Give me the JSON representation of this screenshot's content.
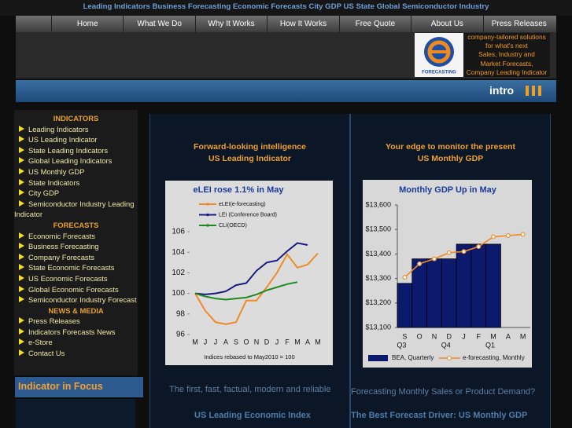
{
  "top_banner": "Leading Indicators Business Forecasting Economic Forecasts City GDP US State Global Semiconductor Industry",
  "nav": [
    "Home",
    "What We Do",
    "Why It Works",
    "How It Works",
    "Free Quote",
    "About Us",
    "Press Releases"
  ],
  "logo_text": "FORECASTING",
  "header_box": [
    "company-tailored solutions",
    "for what's next",
    "Sales, Industry and",
    "Market Forecasts,",
    "Company Leading Indicator"
  ],
  "intro": "intro",
  "sidebar": [
    {
      "heading": "INDICATORS",
      "links": [
        "Leading Indicators",
        "US Leading Indicator",
        "State Leading Indicators",
        "Global Leading Indicators",
        "US Monthly GDP",
        "State Indicators",
        "City GDP",
        "Semiconductor Industry Leading Indicator"
      ]
    },
    {
      "heading": "FORECASTS",
      "links": [
        "Economic Forecasts",
        "Business Forecasting",
        "Company Forecasts",
        "State Economic Forecasts",
        "US Economic Forecasts",
        "Global Economic Forecasts",
        "Semiconductor Industry Forecast"
      ]
    },
    {
      "heading": "NEWS & MEDIA",
      "links": [
        "Press Releases",
        "Indicators Forecasts News",
        "e-Store",
        "Contact Us"
      ]
    }
  ],
  "focus_heading": "Indicator in Focus",
  "panels": [
    {
      "heading": [
        "Forward-looking intelligence",
        "US Leading Indicator"
      ],
      "caption": "The first, fast, factual, modern and reliable",
      "link": "US Leading Economic Index"
    },
    {
      "heading": [
        "Your edge to monitor the present",
        "US Monthly GDP"
      ],
      "caption": "Forecasting Monthly Sales or Product Demand?",
      "link": "The Best Forecast Driver: US Monthly GDP"
    }
  ],
  "chart_data": [
    {
      "type": "line",
      "title": "eLEI rose 1.1% in May",
      "note": "Indices rebased to May2010 = 100",
      "categories": [
        "M",
        "J",
        "J",
        "A",
        "S",
        "O",
        "N",
        "D",
        "J",
        "F",
        "M",
        "A",
        "M"
      ],
      "series": [
        {
          "name": "eLEI(e-forecasting)",
          "color": "#f08a24",
          "values": [
            100,
            98.3,
            97.2,
            97.0,
            97.2,
            99.3,
            99.3,
            100.6,
            102.0,
            103.8,
            102.5,
            102.8,
            103.9
          ]
        },
        {
          "name": "LEI (Conference Board)",
          "color": "#1a1a80",
          "values": [
            100,
            99.9,
            100.0,
            100.2,
            100.8,
            101.0,
            102.2,
            103.0,
            103.2,
            104.1,
            104.9,
            104.7,
            null
          ]
        },
        {
          "name": "CLI(OECD)",
          "color": "#1f8a1f",
          "values": [
            100,
            99.7,
            99.5,
            99.4,
            99.5,
            99.6,
            99.9,
            100.3,
            100.6,
            100.9,
            101.1,
            null,
            null
          ]
        }
      ],
      "ylim": [
        96,
        106
      ],
      "yticks": [
        96,
        98,
        100,
        102,
        104,
        106
      ],
      "grid": false
    },
    {
      "type": "combo",
      "title": "Monthly GDP Up in May",
      "categories": [
        "S",
        "O",
        "N",
        "D",
        "J",
        "F",
        "M",
        "A",
        "M"
      ],
      "quarter_labels": [
        "Q3",
        null,
        null,
        "Q4",
        null,
        null,
        "Q1",
        null,
        null
      ],
      "series": [
        {
          "name": "BEA, Quarterly",
          "type": "bar",
          "color": "#0c1a6e",
          "values": [
            13280,
            13380,
            13380,
            13380,
            13440,
            13440,
            13440,
            null,
            null
          ]
        },
        {
          "name": "e-forecasting, Monthly",
          "type": "line",
          "color": "#f08a24",
          "values": [
            13305,
            13360,
            13380,
            13405,
            13410,
            13430,
            13470,
            13475,
            13480
          ]
        }
      ],
      "ylim": [
        13100,
        13600
      ],
      "yticks": [
        {
          "value": 13100,
          "label": "$13,100"
        },
        {
          "value": 13200,
          "label": "$13,200"
        },
        {
          "value": 13300,
          "label": "$13,300"
        },
        {
          "value": 13400,
          "label": "$13,400"
        },
        {
          "value": 13500,
          "label": "$13,500"
        },
        {
          "value": 13600,
          "label": "$13,600"
        }
      ],
      "grid": false
    }
  ]
}
